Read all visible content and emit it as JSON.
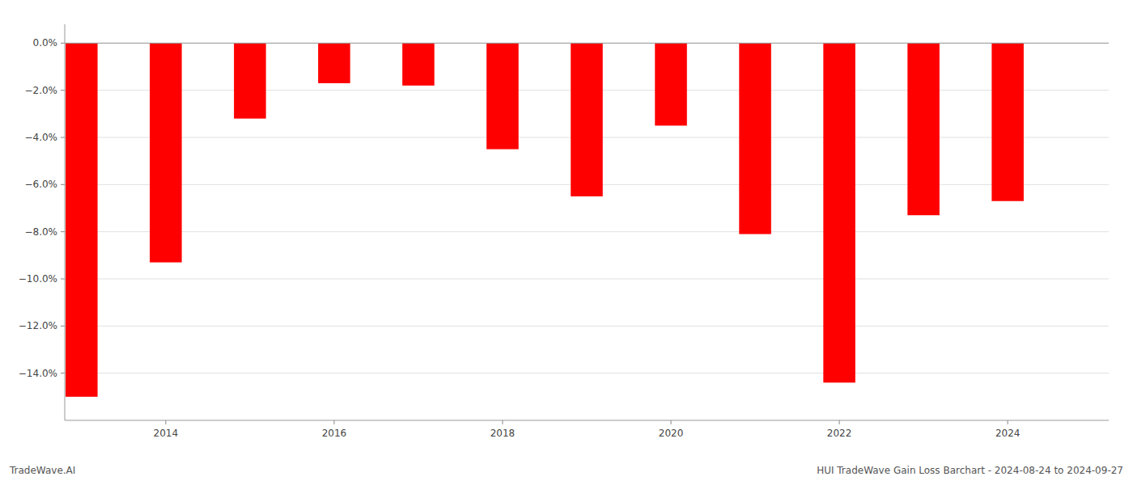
{
  "chart_data": {
    "type": "bar",
    "x": [
      2013,
      2014,
      2015,
      2016,
      2017,
      2018,
      2019,
      2020,
      2021,
      2022,
      2023,
      2024
    ],
    "values": [
      -15.0,
      -9.3,
      -3.2,
      -1.7,
      -1.8,
      -4.5,
      -6.5,
      -3.5,
      -8.1,
      -14.4,
      -7.3,
      -6.7
    ],
    "color": "#ff0000",
    "xlim": [
      2012.8,
      2025.2
    ],
    "xticks": [
      2014,
      2016,
      2018,
      2020,
      2022,
      2024
    ],
    "ylim": [
      -16.0,
      0.8
    ],
    "yticks": [
      {
        "value": 0.0,
        "label": "0.0%"
      },
      {
        "value": -2.0,
        "label": "−2.0%"
      },
      {
        "value": -4.0,
        "label": "−4.0%"
      },
      {
        "value": -6.0,
        "label": "−6.0%"
      },
      {
        "value": -8.0,
        "label": "−8.0%"
      },
      {
        "value": -10.0,
        "label": "−10.0%"
      },
      {
        "value": -12.0,
        "label": "−12.0%"
      },
      {
        "value": -14.0,
        "label": "−14.0%"
      }
    ],
    "grid": true,
    "annotations": [
      "TradeWave.AI",
      "HUI TradeWave Gain Loss Barchart - 2024-08-24 to 2024-09-27"
    ]
  }
}
